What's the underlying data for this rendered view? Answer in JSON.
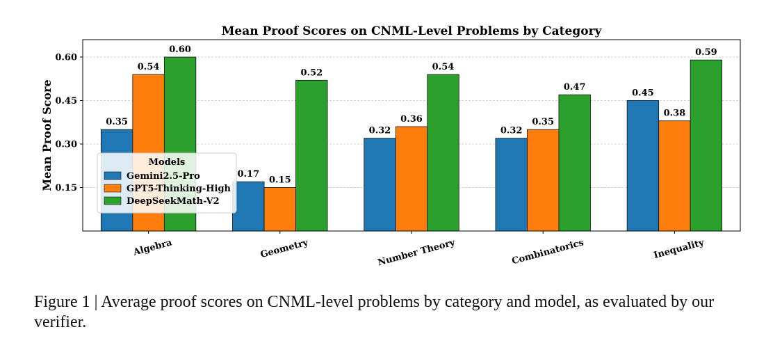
{
  "chart_data": {
    "type": "bar",
    "title": "Mean Proof Scores on CNML-Level Problems by Category",
    "xlabel": "",
    "ylabel": "Mean Proof Score",
    "ylim": [
      0,
      0.66
    ],
    "yticks": [
      "0.15",
      "0.30",
      "0.45",
      "0.60"
    ],
    "categories": [
      "Algebra",
      "Geometry",
      "Number Theory",
      "Combinatorics",
      "Inequality"
    ],
    "series": [
      {
        "name": "Gemini2.5-Pro",
        "color": "#1f77b4",
        "values": [
          0.35,
          0.17,
          0.32,
          0.32,
          0.45
        ]
      },
      {
        "name": "GPT5-Thinking-High",
        "color": "#ff7f0e",
        "values": [
          0.54,
          0.15,
          0.36,
          0.35,
          0.38
        ]
      },
      {
        "name": "DeepSeekMath-V2",
        "color": "#2ca02c",
        "values": [
          0.6,
          0.52,
          0.54,
          0.47,
          0.59
        ]
      }
    ],
    "legend": {
      "title": "Models",
      "placement": "center-left"
    },
    "grid": "y-dashed"
  },
  "caption": "Figure 1 | Average proof scores on CNML-level problems by category and model, as evaluated by our verifier."
}
